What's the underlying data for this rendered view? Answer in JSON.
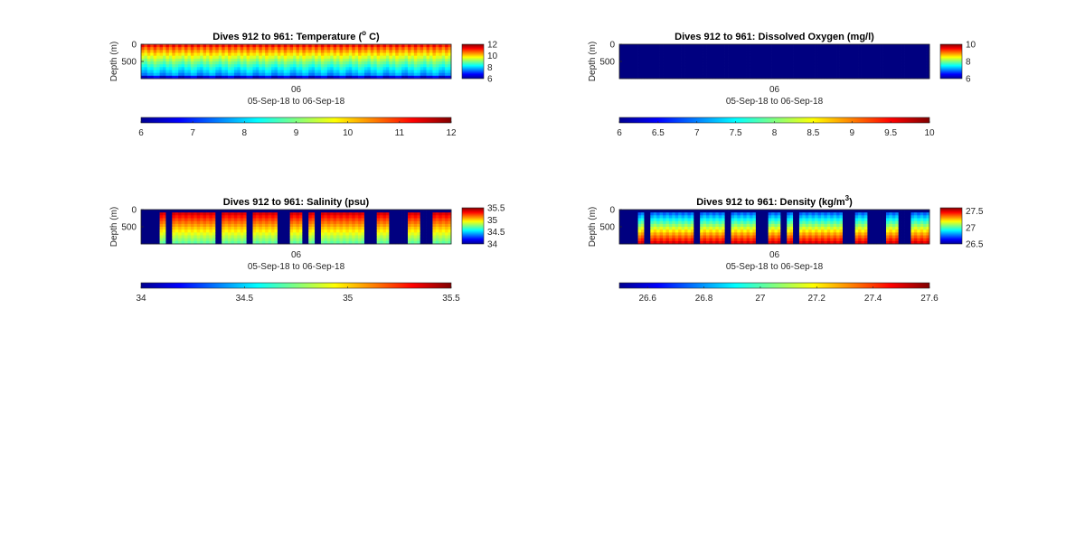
{
  "chart_data": [
    {
      "type": "heatmap",
      "title_main": "Dives 912 to 961: Temperature (",
      "title_sup": "o",
      "title_tail": " C)",
      "ylabel": "Depth (m)",
      "yticks": [
        0,
        500
      ],
      "ylim": [
        0,
        1000
      ],
      "xtick": "06",
      "xlabel": "05-Sep-18 to 06-Sep-18",
      "clim": [
        6,
        12
      ],
      "side_ticks": [
        12,
        10,
        8,
        6
      ],
      "bottom_ticks": [
        6,
        7,
        8,
        9,
        10,
        11,
        12
      ],
      "pattern": "temperature",
      "dives": {
        "count": 50,
        "columns_per_dive": 2
      }
    },
    {
      "type": "heatmap",
      "title_main": "Dives 912 to 961: Dissolved Oxygen (mg/l)",
      "ylabel": "Depth (m)",
      "yticks": [
        0,
        500
      ],
      "ylim": [
        0,
        1000
      ],
      "xtick": "06",
      "xlabel": "05-Sep-18 to 06-Sep-18",
      "clim": [
        6,
        10
      ],
      "side_ticks": [
        10,
        8,
        6
      ],
      "bottom_ticks": [
        6,
        6.5,
        7,
        7.5,
        8,
        8.5,
        9,
        9.5,
        10
      ],
      "pattern": "uniform",
      "uniform_value": 6,
      "dives": {
        "count": 50,
        "columns_per_dive": 2
      }
    },
    {
      "type": "heatmap",
      "title_main": "Dives 912 to 961: Salinity (psu)",
      "ylabel": "Depth (m)",
      "yticks": [
        0,
        500
      ],
      "ylim": [
        0,
        1000
      ],
      "xtick": "06",
      "xlabel": "05-Sep-18 to 06-Sep-18",
      "clim": [
        34,
        35.5
      ],
      "side_ticks": [
        35.5,
        35,
        34.5,
        34
      ],
      "bottom_ticks": [
        34,
        34.5,
        35,
        35.5
      ],
      "pattern": "gappy",
      "surface_value": 35.5,
      "deep_value": 34.7,
      "gap_value": 34,
      "dives": {
        "count": 50,
        "columns_per_dive": 2
      },
      "gap_dives": [
        0,
        1,
        2,
        4,
        12,
        17,
        22,
        23,
        26,
        28,
        36,
        37,
        40,
        41,
        42,
        45,
        46
      ]
    },
    {
      "type": "heatmap",
      "title_main": "Dives 912 to 961: Density (kg/m",
      "title_sup": "3",
      "title_tail": ")",
      "ylabel": "Depth (m)",
      "yticks": [
        0,
        500
      ],
      "ylim": [
        0,
        1000
      ],
      "xtick": "06",
      "xlabel": "05-Sep-18 to 06-Sep-18",
      "clim": [
        26.5,
        27.6
      ],
      "side_ticks": [
        27.5,
        27,
        26.5
      ],
      "bottom_ticks": [
        26.6,
        26.8,
        27,
        27.2,
        27.4,
        27.6
      ],
      "pattern": "gappy",
      "surface_value": 26.6,
      "deep_value": 27.5,
      "gap_value": 26.5,
      "dives": {
        "count": 50,
        "columns_per_dive": 2
      },
      "gap_dives": [
        0,
        1,
        2,
        4,
        12,
        17,
        22,
        23,
        26,
        28,
        36,
        37,
        40,
        41,
        42,
        45,
        46
      ]
    }
  ]
}
